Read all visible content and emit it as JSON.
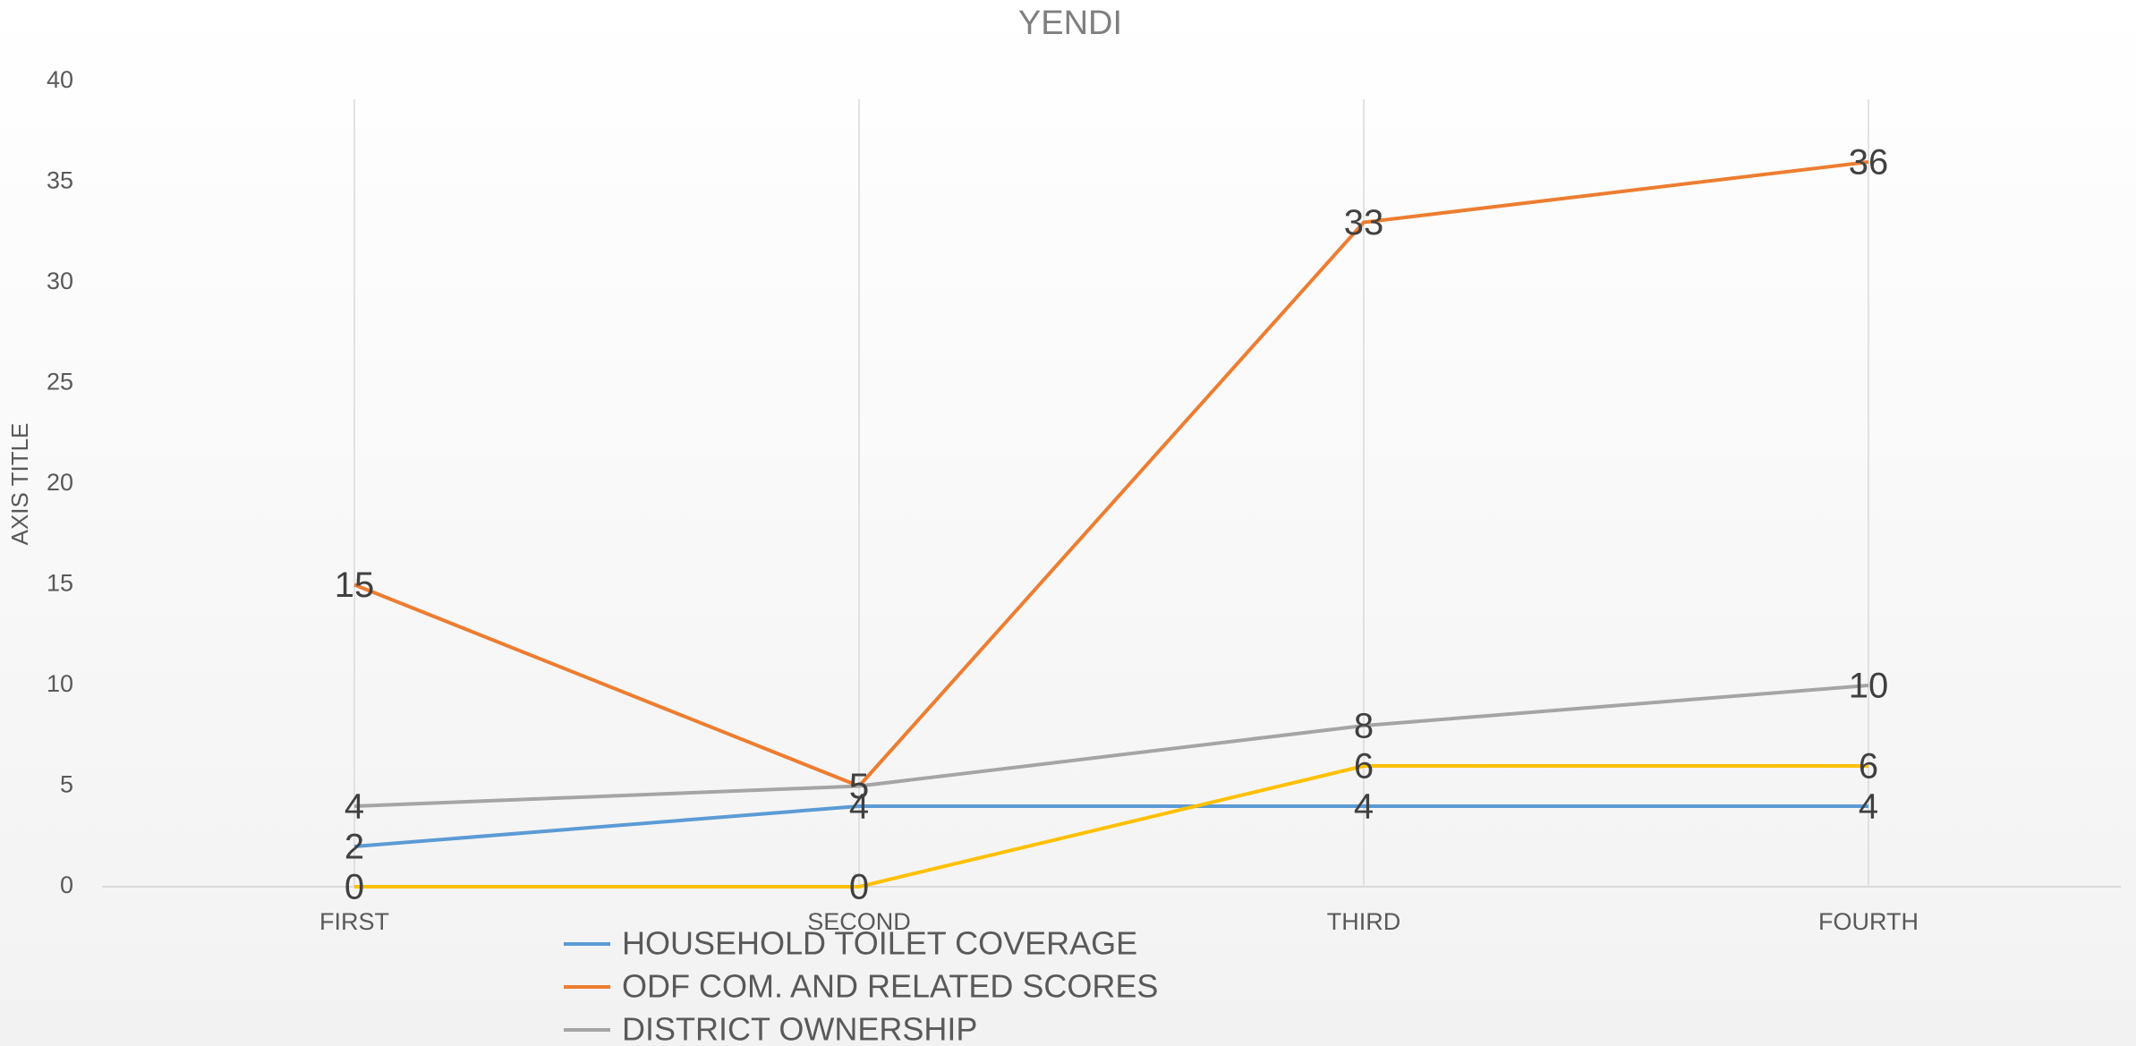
{
  "chart_data": {
    "type": "line",
    "title": "YENDI",
    "y_label": "AXIS TITLE",
    "categories": [
      "FIRST",
      "SECOND",
      "THIRD",
      "FOURTH"
    ],
    "series": [
      {
        "name": "HOUSEHOLD TOILET COVERAGE",
        "color": "#5b9bd5",
        "values": [
          2,
          4,
          4,
          4
        ]
      },
      {
        "name": "ODF COM. AND RELATED SCORES",
        "color": "#ed7d31",
        "values": [
          15,
          5,
          33,
          36
        ]
      },
      {
        "name": "DISTRICT OWNERSHIP",
        "color": "#a5a5a5",
        "values": [
          4,
          5,
          8,
          10
        ]
      },
      {
        "color": "#ffc000",
        "values": [
          0,
          0,
          6,
          6
        ]
      }
    ],
    "ylim": [
      0,
      40
    ],
    "yticks": [
      0,
      5,
      10,
      15,
      20,
      25,
      30,
      35,
      40
    ],
    "grid": false,
    "drop_lines": true,
    "data_labels": true
  }
}
